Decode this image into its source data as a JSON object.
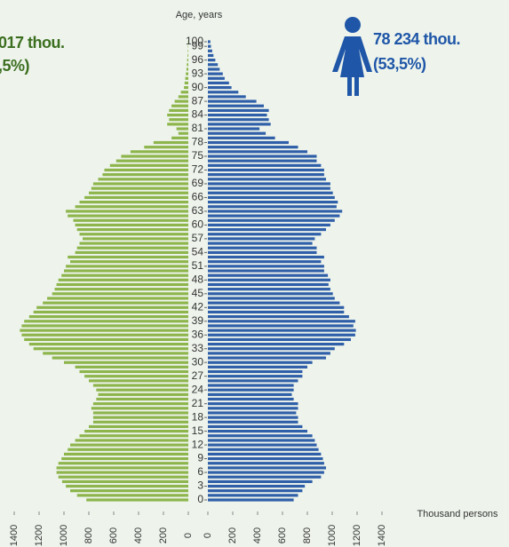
{
  "chart_data": {
    "type": "pyramid",
    "ylabel": "Age, years",
    "xlabel": "Thousand persons",
    "annotations": {
      "left_total": "017 thou.",
      "left_share": ",5%)",
      "right_total": "78 234 thou.",
      "right_share": "(53,5%)"
    },
    "categories": [
      "0",
      null,
      null,
      "3",
      null,
      null,
      "6",
      null,
      null,
      "9",
      null,
      null,
      "12",
      null,
      null,
      "15",
      null,
      null,
      "18",
      null,
      null,
      "21",
      null,
      null,
      "24",
      null,
      null,
      "27",
      null,
      null,
      "30",
      null,
      null,
      "33",
      null,
      null,
      "36",
      null,
      null,
      "39",
      null,
      null,
      "42",
      null,
      null,
      "45",
      null,
      null,
      "48",
      null,
      null,
      "51",
      null,
      null,
      "54",
      null,
      null,
      "57",
      null,
      null,
      "60",
      null,
      null,
      "63",
      null,
      null,
      "66",
      null,
      null,
      "69",
      null,
      null,
      "72",
      null,
      null,
      "75",
      null,
      null,
      "78",
      null,
      null,
      "81",
      null,
      null,
      "84",
      null,
      null,
      "87",
      null,
      null,
      "90",
      null,
      null,
      "93",
      null,
      null,
      "96",
      null,
      null,
      "99",
      "100"
    ],
    "series": [
      {
        "side": "left",
        "color": "#8db54c",
        "values": [
          820,
          895,
          950,
          985,
          1015,
          1045,
          1060,
          1060,
          1045,
          1020,
          1000,
          970,
          950,
          910,
          875,
          835,
          800,
          765,
          765,
          765,
          780,
          765,
          740,
          725,
          740,
          765,
          800,
          835,
          875,
          910,
          1000,
          1095,
          1170,
          1245,
          1280,
          1320,
          1340,
          1355,
          1340,
          1320,
          1280,
          1245,
          1220,
          1170,
          1135,
          1095,
          1075,
          1060,
          1045,
          1020,
          1000,
          985,
          950,
          970,
          910,
          895,
          875,
          850,
          875,
          895,
          910,
          925,
          970,
          985,
          910,
          875,
          835,
          800,
          780,
          765,
          725,
          690,
          675,
          630,
          580,
          540,
          465,
          355,
          280,
          135,
          80,
          95,
          170,
          155,
          170,
          155,
          135,
          110,
          80,
          60,
          35,
          30,
          25,
          20,
          15,
          12,
          9,
          6,
          4,
          3,
          2
        ]
      },
      {
        "side": "right",
        "color": "#2f5fa8",
        "values": [
          690,
          725,
          760,
          780,
          840,
          910,
          935,
          950,
          935,
          925,
          910,
          890,
          875,
          860,
          840,
          800,
          760,
          725,
          725,
          710,
          725,
          725,
          690,
          675,
          690,
          690,
          725,
          760,
          760,
          800,
          840,
          950,
          985,
          1020,
          1095,
          1150,
          1185,
          1190,
          1170,
          1185,
          1135,
          1095,
          1095,
          1060,
          1020,
          1005,
          985,
          970,
          985,
          965,
          935,
          935,
          910,
          935,
          875,
          875,
          840,
          860,
          910,
          950,
          985,
          1020,
          1060,
          1080,
          1035,
          1045,
          1020,
          1005,
          985,
          985,
          950,
          935,
          935,
          910,
          875,
          875,
          800,
          725,
          650,
          540,
          465,
          415,
          505,
          490,
          475,
          490,
          450,
          390,
          305,
          245,
          190,
          170,
          135,
          120,
          95,
          80,
          60,
          45,
          35,
          25,
          20
        ]
      }
    ],
    "xlim": [
      0,
      1400
    ],
    "xticks": [
      0,
      200,
      400,
      600,
      800,
      1000,
      1200,
      1400
    ]
  }
}
